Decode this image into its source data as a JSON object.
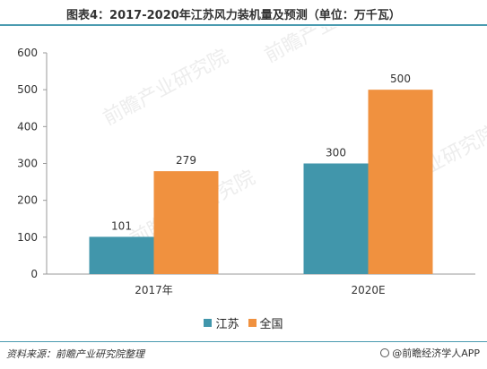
{
  "title": "图表4：2017-2020年江苏风力装机量及预测（单位：万千瓦）",
  "source": "资料来源：前瞻产业研究院整理",
  "brand": "@前瞻经济学人APP",
  "watermark": "前瞻产业研究院",
  "colors": {
    "jiangsu": "#4196ab",
    "national": "#f0913f",
    "accent": "#4a9bb0"
  },
  "chart_data": {
    "type": "bar",
    "categories": [
      "2017年",
      "2020E"
    ],
    "series": [
      {
        "name": "江苏",
        "values": [
          101,
          300
        ]
      },
      {
        "name": "全国",
        "values": [
          279,
          500
        ]
      }
    ],
    "ylim": [
      0,
      600
    ],
    "yticks": [
      0,
      100,
      200,
      300,
      400,
      500,
      600
    ],
    "grid": false,
    "legend": "bottom-center"
  }
}
